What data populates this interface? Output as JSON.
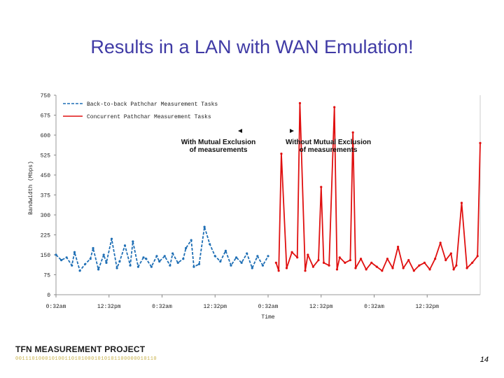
{
  "slide": {
    "title": "Results in a LAN with WAN Emulation!",
    "page_number": "14"
  },
  "logo": {
    "title": "TFN MEASUREMENT PROJECT",
    "bits": "0011101000101001101010001010101100000010110"
  },
  "colors": {
    "title": "#3f3aa5",
    "series_blue": "#1f6fb5",
    "series_red": "#e01010"
  },
  "chart_data": {
    "type": "line",
    "title": "",
    "xlabel": "Time",
    "ylabel": "Bandwidth (Mbps)",
    "ylim": [
      0,
      750
    ],
    "yticks": [
      "750",
      "675",
      "600",
      "525",
      "450",
      "375",
      "300",
      "225",
      "150",
      "75",
      "0"
    ],
    "xticks": [
      "0:32am",
      "12:32pm",
      "0:32am",
      "12:32pm",
      "0:32am",
      "12:32pm",
      "0:32am",
      "12:32pm"
    ],
    "xlim": [
      0,
      8
    ],
    "legend": [
      "Back-to-back Pathchar Measurement Tasks",
      "Concurrent Pathchar Measurement Tasks"
    ],
    "legend_position": "top-left",
    "annotations": {
      "left_lines": [
        "With Mutual Exclusion",
        "of measurements"
      ],
      "right_lines": [
        "Without Mutual Exclusion",
        "of measurements"
      ]
    },
    "series": [
      {
        "name": "Back-to-back Pathchar Measurement Tasks",
        "style": "dashed",
        "x": [
          0.0,
          0.1,
          0.2,
          0.3,
          0.35,
          0.45,
          0.55,
          0.65,
          0.7,
          0.8,
          0.9,
          0.95,
          1.05,
          1.15,
          1.2,
          1.3,
          1.4,
          1.45,
          1.55,
          1.65,
          1.7,
          1.8,
          1.9,
          1.95,
          2.05,
          2.15,
          2.2,
          2.3,
          2.4,
          2.45,
          2.55,
          2.6,
          2.7,
          2.8,
          2.9,
          3.0,
          3.1,
          3.2,
          3.3,
          3.4,
          3.5,
          3.6,
          3.7,
          3.8,
          3.9,
          4.0
        ],
        "values": [
          150,
          130,
          140,
          110,
          160,
          90,
          115,
          135,
          175,
          95,
          150,
          120,
          210,
          100,
          125,
          185,
          110,
          200,
          105,
          140,
          135,
          105,
          145,
          125,
          145,
          110,
          155,
          120,
          135,
          175,
          205,
          105,
          115,
          255,
          190,
          145,
          125,
          165,
          110,
          140,
          120,
          155,
          100,
          145,
          110,
          145
        ]
      },
      {
        "name": "Concurrent Pathchar Measurement Tasks",
        "style": "solid",
        "x": [
          4.15,
          4.2,
          4.25,
          4.35,
          4.45,
          4.55,
          4.6,
          4.7,
          4.75,
          4.85,
          4.95,
          5.0,
          5.05,
          5.15,
          5.25,
          5.3,
          5.35,
          5.45,
          5.55,
          5.6,
          5.65,
          5.75,
          5.85,
          5.95,
          6.05,
          6.15,
          6.25,
          6.35,
          6.45,
          6.55,
          6.65,
          6.75,
          6.85,
          6.95,
          7.05,
          7.15,
          7.25,
          7.35,
          7.45,
          7.5,
          7.55,
          7.65,
          7.75,
          7.85,
          7.95,
          8.0
        ],
        "values": [
          120,
          90,
          530,
          100,
          160,
          140,
          720,
          90,
          150,
          105,
          130,
          405,
          120,
          110,
          705,
          95,
          140,
          120,
          130,
          610,
          100,
          135,
          95,
          120,
          105,
          90,
          135,
          100,
          180,
          100,
          130,
          90,
          110,
          120,
          95,
          135,
          195,
          130,
          155,
          95,
          110,
          345,
          100,
          120,
          145,
          570
        ]
      }
    ]
  }
}
